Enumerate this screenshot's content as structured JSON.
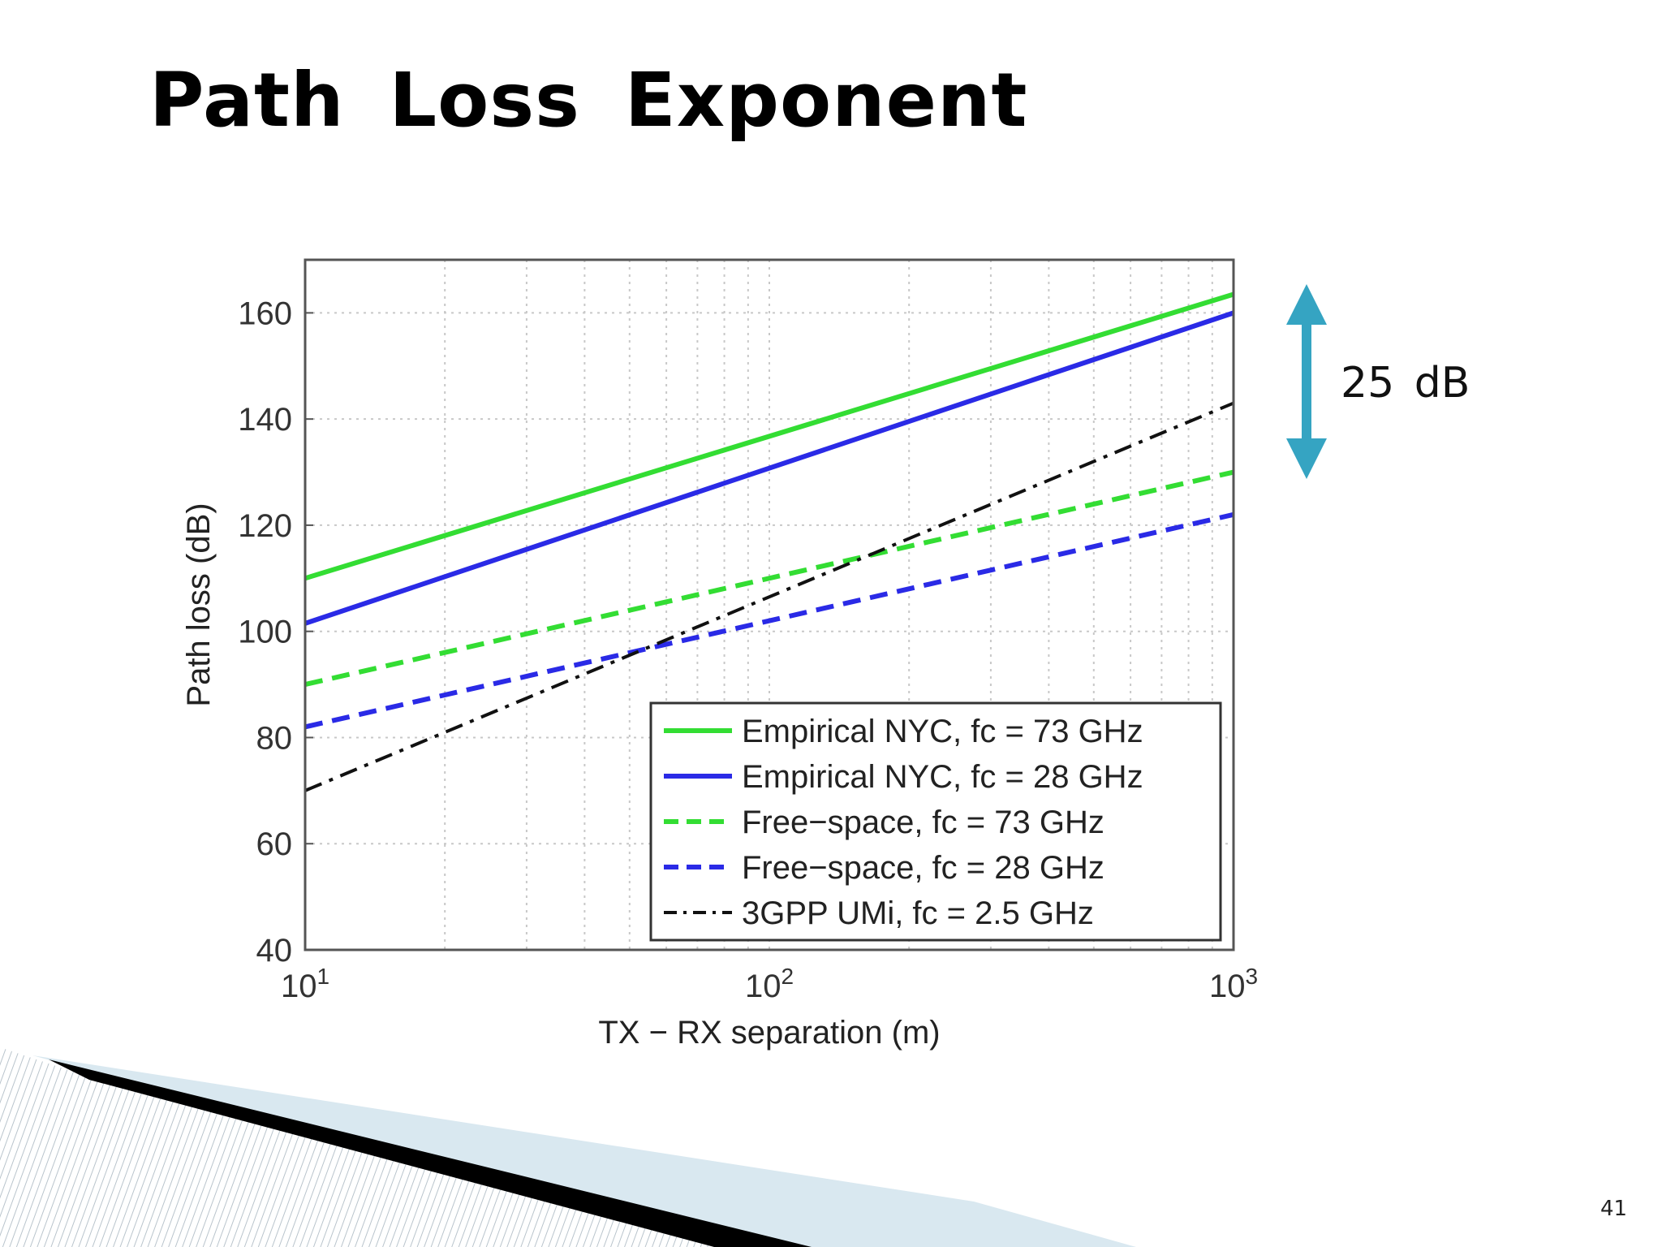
{
  "slide": {
    "title": "Path Loss Exponent",
    "page_number": "41",
    "annotation": "25 dB",
    "annotation_color": "#35a4c2"
  },
  "chart_data": {
    "type": "line",
    "title": "",
    "xlabel": "TX − RX separation (m)",
    "ylabel": "Path loss (dB)",
    "x_scale": "log",
    "xlim": [
      10,
      1000
    ],
    "ylim": [
      40,
      170
    ],
    "x_ticks": [
      {
        "value": 10,
        "base": "10",
        "exp": "1"
      },
      {
        "value": 100,
        "base": "10",
        "exp": "2"
      },
      {
        "value": 1000,
        "base": "10",
        "exp": "3"
      }
    ],
    "y_ticks": [
      40,
      60,
      80,
      100,
      120,
      140,
      160
    ],
    "grid": true,
    "legend_position": "bottom-right",
    "series": [
      {
        "name": "Empirical NYC, fc = 73 GHz",
        "color": "#33dd33",
        "style": "solid",
        "x": [
          10,
          1000
        ],
        "y": [
          110,
          163.5
        ]
      },
      {
        "name": "Empirical NYC, fc = 28 GHz",
        "color": "#2a2ae6",
        "style": "solid",
        "x": [
          10,
          1000
        ],
        "y": [
          101.5,
          160
        ]
      },
      {
        "name": "Free−space, fc = 73 GHz",
        "color": "#33dd33",
        "style": "dashed",
        "x": [
          10,
          1000
        ],
        "y": [
          90,
          130
        ]
      },
      {
        "name": "Free−space, fc = 28 GHz",
        "color": "#2a2ae6",
        "style": "dashed",
        "x": [
          10,
          1000
        ],
        "y": [
          82,
          122
        ]
      },
      {
        "name": "3GPP UMi, fc = 2.5 GHz",
        "color": "#111111",
        "style": "dashdot",
        "x": [
          10,
          1000
        ],
        "y": [
          70,
          143
        ]
      }
    ]
  }
}
